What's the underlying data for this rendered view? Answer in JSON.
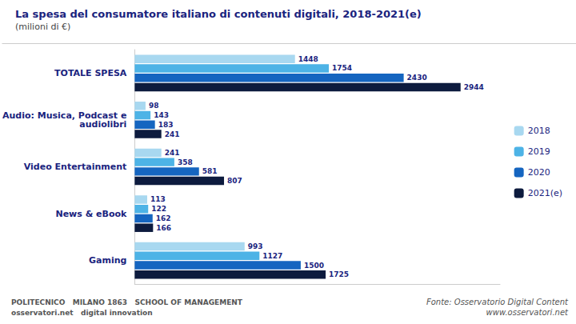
{
  "chart_data": {
    "type": "bar",
    "orientation": "horizontal",
    "title": "La spesa del consumatore italiano di contenuti digitali, 2018-2021(e)",
    "subtitle": "(milioni di €)",
    "categories": [
      "TOTALE SPESA",
      "Audio: Musica, Podcast e\naudiolibri",
      "Video Entertainment",
      "News & eBook",
      "Gaming"
    ],
    "series": [
      {
        "name": "2018",
        "color": "#a8d8f0",
        "values": [
          1448,
          98,
          241,
          113,
          993
        ]
      },
      {
        "name": "2019",
        "color": "#4db3e6",
        "values": [
          1754,
          143,
          358,
          122,
          1127
        ]
      },
      {
        "name": "2020",
        "color": "#1565c0",
        "values": [
          2430,
          183,
          581,
          162,
          1500
        ]
      },
      {
        "name": "2021(e)",
        "color": "#0d1b3e",
        "values": [
          2944,
          241,
          807,
          166,
          1725
        ]
      }
    ],
    "xlim": [
      0,
      3300
    ],
    "xticks": [],
    "grid": false,
    "legend": "right",
    "data_labels": true,
    "tick_labels": "y",
    "annotations": [
      "Fonte: Osservatorio Digital Content\nwww.osservatori.net",
      "POLITECNICO",
      "MILANO 1863",
      "SCHOOL OF MANAGEMENT",
      "osservatori.net",
      "digital innovation"
    ]
  }
}
